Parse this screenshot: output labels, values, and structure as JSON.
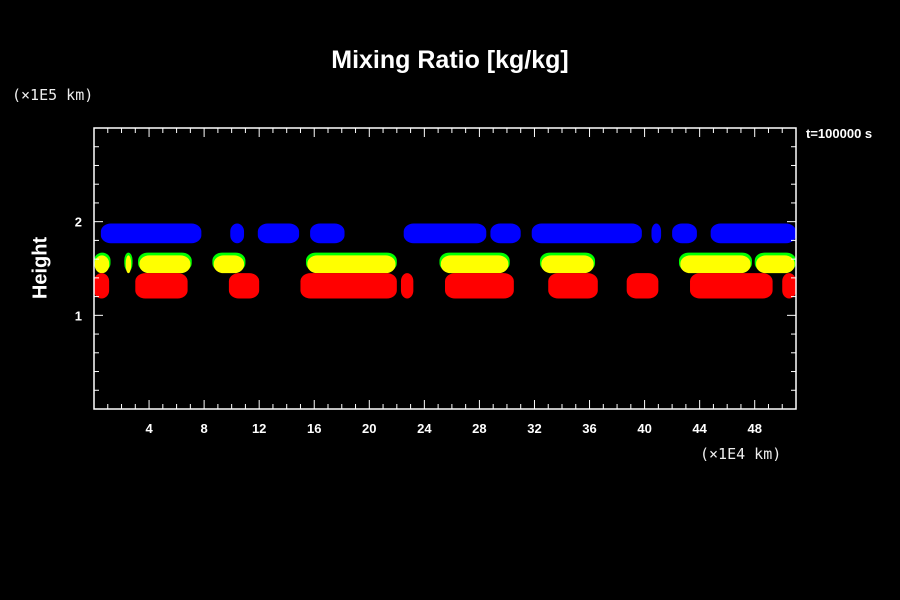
{
  "chart_data": {
    "type": "heatmap",
    "title": "Mixing Ratio [kg/kg]",
    "ylabel": "Height",
    "y_unit": "(×1E5 km)",
    "x_unit": "(×1E4 km)",
    "time_label": "t=100000 s",
    "xlim": [
      0,
      51
    ],
    "ylim": [
      0,
      3
    ],
    "x_ticks": [
      4,
      8,
      12,
      16,
      20,
      24,
      28,
      32,
      36,
      40,
      44,
      48
    ],
    "y_ticks": [
      1,
      2
    ],
    "colors": {
      "blue": "#0000ff",
      "green": "#00ff00",
      "yellow": "#ffff00",
      "red": "#ff0000",
      "frame": "#ffffff",
      "background": "#000000"
    },
    "layers": [
      {
        "color": "blue",
        "y_range": [
          1.77,
          1.98
        ],
        "x_intervals": [
          [
            0.5,
            7.8
          ],
          [
            9.9,
            10.9
          ],
          [
            11.9,
            14.9
          ],
          [
            15.7,
            18.2
          ],
          [
            22.5,
            28.5
          ],
          [
            28.8,
            31.0
          ],
          [
            31.8,
            39.8
          ],
          [
            40.5,
            41.2
          ],
          [
            42.0,
            43.8
          ],
          [
            44.8,
            51.0
          ]
        ]
      },
      {
        "color": "green",
        "y_range": [
          1.47,
          1.67
        ],
        "x_intervals": [
          [
            0.0,
            1.2
          ],
          [
            2.2,
            2.8
          ],
          [
            3.2,
            7.1
          ],
          [
            8.6,
            11.0
          ],
          [
            15.4,
            22.0
          ],
          [
            25.1,
            30.2
          ],
          [
            32.4,
            36.4
          ],
          [
            42.5,
            47.8
          ],
          [
            48.0,
            51.0
          ]
        ]
      },
      {
        "color": "yellow",
        "y_range": [
          1.45,
          1.64
        ],
        "x_intervals": [
          [
            0.05,
            1.1
          ],
          [
            2.3,
            2.7
          ],
          [
            3.3,
            7.0
          ],
          [
            8.7,
            10.9
          ],
          [
            15.5,
            21.9
          ],
          [
            25.2,
            30.1
          ],
          [
            32.5,
            36.3
          ],
          [
            42.6,
            47.7
          ],
          [
            48.1,
            50.9
          ]
        ]
      },
      {
        "color": "red",
        "y_range": [
          1.18,
          1.45
        ],
        "x_intervals": [
          [
            0.0,
            1.1
          ],
          [
            3.0,
            6.8
          ],
          [
            9.8,
            12.0
          ],
          [
            15.0,
            22.0
          ],
          [
            22.3,
            23.2
          ],
          [
            25.5,
            30.5
          ],
          [
            33.0,
            36.6
          ],
          [
            38.7,
            41.0
          ],
          [
            43.3,
            49.3
          ],
          [
            50.0,
            51.0
          ]
        ]
      }
    ]
  }
}
